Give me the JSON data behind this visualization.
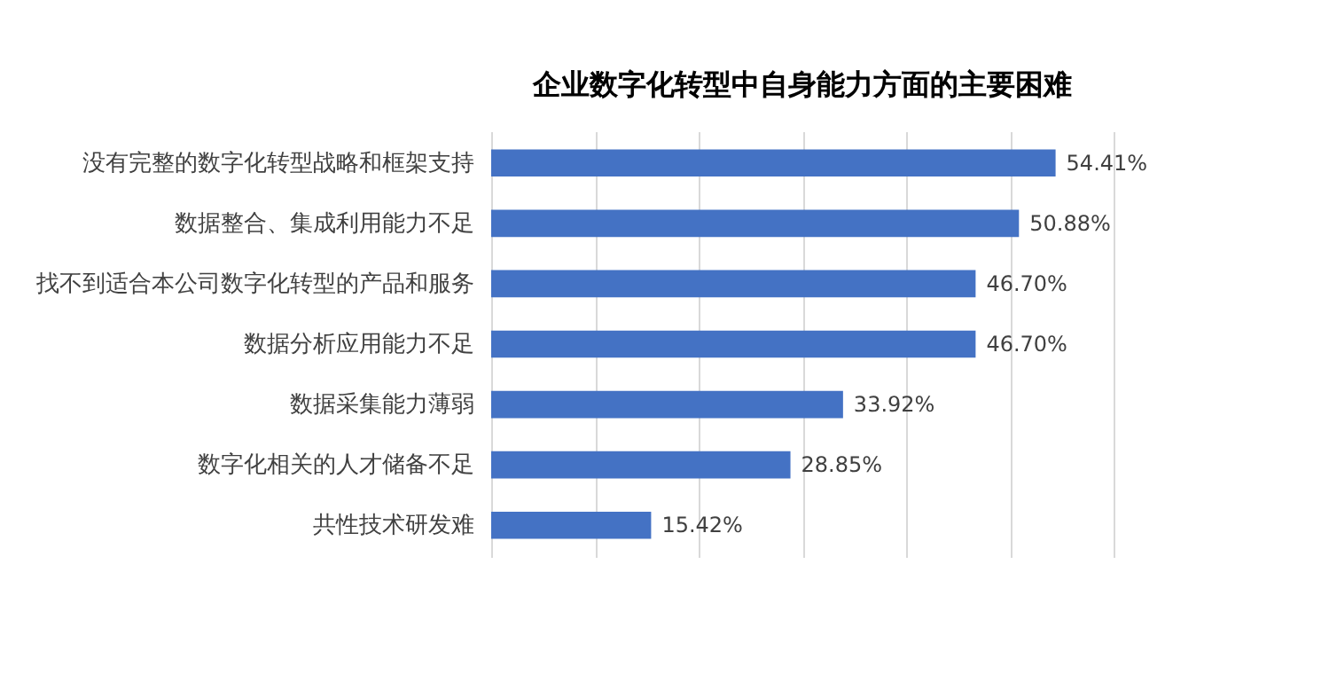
{
  "chart_data": {
    "type": "bar",
    "orientation": "horizontal",
    "title": "企业数字化转型中自身能力方面的主要困难",
    "categories": [
      "没有完整的数字化转型战略和框架支持",
      "数据整合、集成利用能力不足",
      "找不到适合本公司数字化转型的产品和服务",
      "数据分析应用能力不足",
      "数据采集能力薄弱",
      "数字化相关的人才储备不足",
      "共性技术研发难"
    ],
    "values": [
      54.41,
      50.88,
      46.7,
      46.7,
      33.92,
      28.85,
      15.42
    ],
    "value_labels": [
      "54.41%",
      "50.88%",
      "46.70%",
      "46.70%",
      "33.92%",
      "28.85%",
      "15.42%"
    ],
    "color": "#4472c4",
    "xlim": [
      0,
      60
    ],
    "xticks": [
      {
        "value": 0,
        "label": null
      },
      {
        "value": 10,
        "label": null
      },
      {
        "value": 20,
        "label": null
      },
      {
        "value": 30,
        "label": null
      },
      {
        "value": 40,
        "label": null
      },
      {
        "value": 50,
        "label": null
      },
      {
        "value": 60,
        "label": null
      }
    ],
    "grid": "x"
  }
}
